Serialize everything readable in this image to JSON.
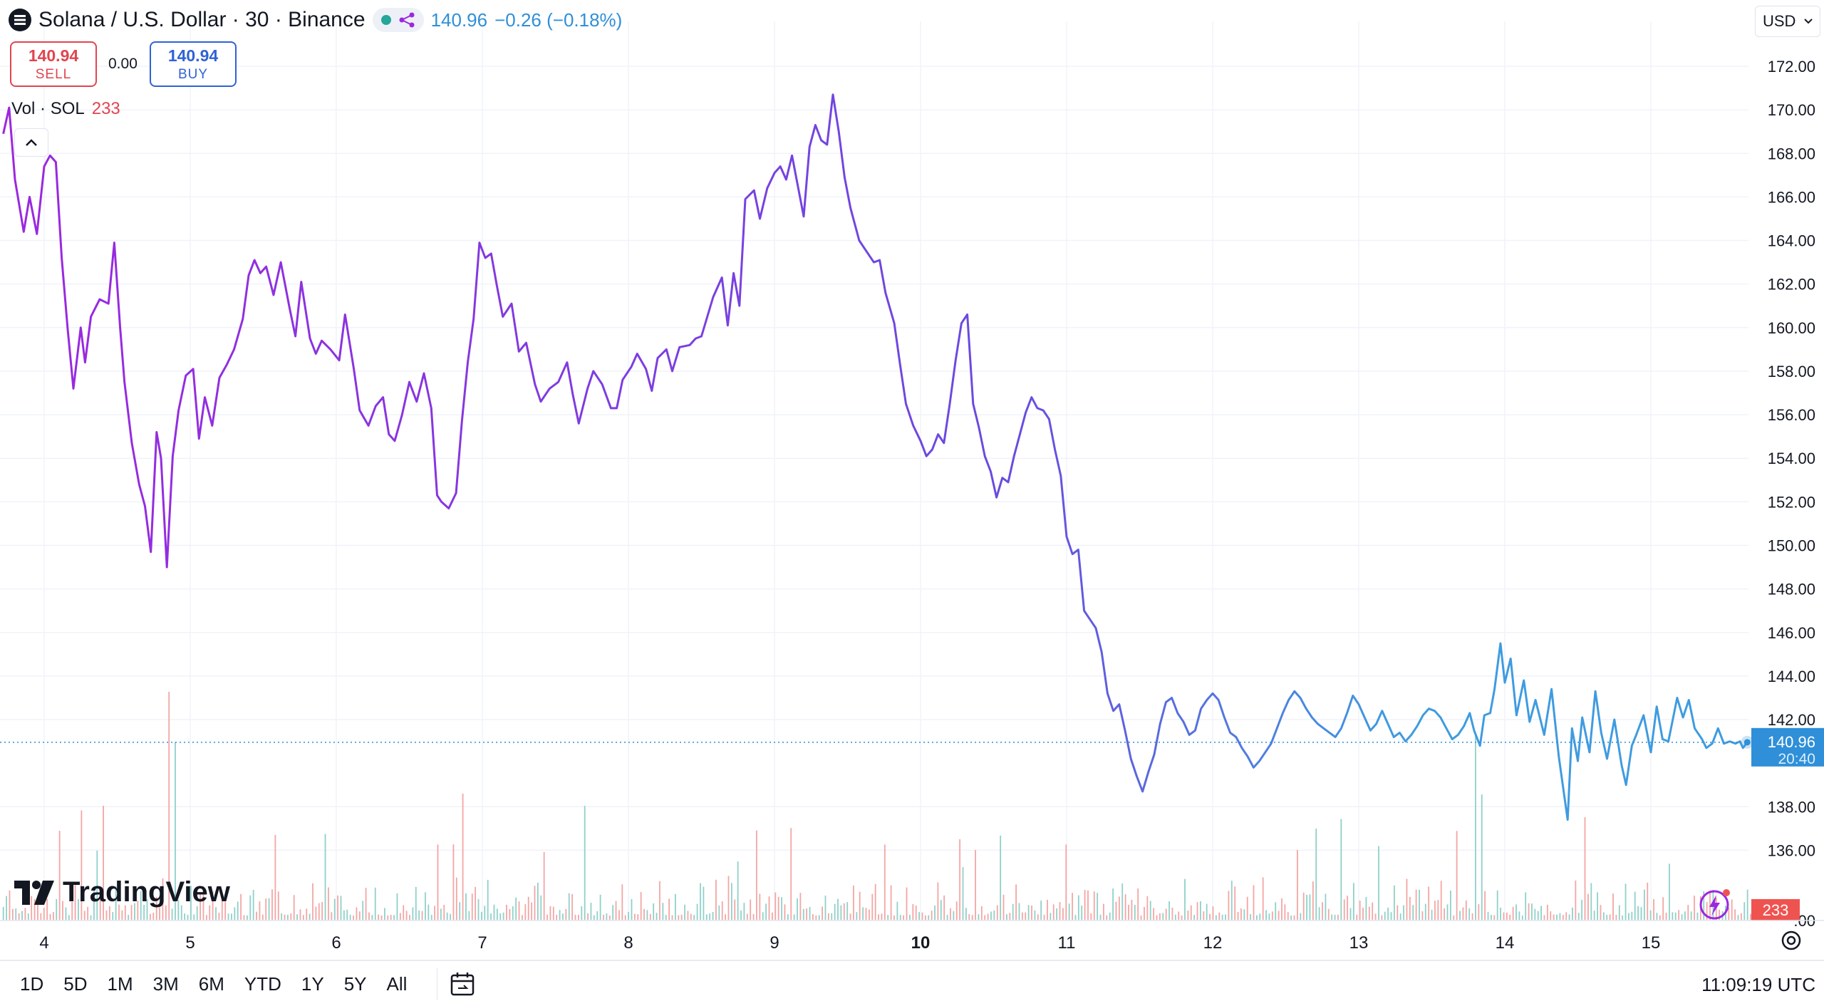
{
  "header": {
    "title": "Solana / U.S. Dollar · 30 · Binance",
    "price": "140.96",
    "change": "−0.26 (−0.18%)",
    "currency": "USD"
  },
  "trade": {
    "sell_price": "140.94",
    "sell_label": "SELL",
    "spread": "0.00",
    "buy_price": "140.94",
    "buy_label": "BUY"
  },
  "volume_legend": {
    "label": "Vol · SOL",
    "value": "233"
  },
  "logo_text": "TradingView",
  "ranges": [
    "1D",
    "5D",
    "1M",
    "3M",
    "6M",
    "YTD",
    "1Y",
    "5Y",
    "All"
  ],
  "clock": "11:09:19 UTC",
  "price_label": {
    "price": "140.96",
    "countdown": "20:40",
    "volume": "233"
  },
  "colors": {
    "line_start": "#9c27e0",
    "line_end": "#3f9be0",
    "vol_up": "#26a69a",
    "vol_down": "#ef5350",
    "last_price": "#2f8fd8"
  },
  "chart_data": {
    "type": "line",
    "title": "Solana / U.S. Dollar · 30 · Binance",
    "x_ticks": [
      "4",
      "5",
      "6",
      "7",
      "8",
      "9",
      "10",
      "11",
      "12",
      "13",
      "14",
      "15"
    ],
    "x_tick_bold": "10",
    "y_ticks": [
      "172.00",
      "170.00",
      "168.00",
      "166.00",
      "164.00",
      "162.00",
      "160.00",
      "158.00",
      "156.00",
      "154.00",
      "152.00",
      "150.00",
      "148.00",
      "146.00",
      "144.00",
      "142.00",
      "138.00",
      "136.00"
    ],
    "ylim": [
      134.2,
      173
    ],
    "xlim": [
      3.72,
      15.91
    ],
    "last_price": 140.96,
    "series": [
      {
        "values": [
          [
            3.72,
            168.9
          ],
          [
            3.76,
            170.1
          ],
          [
            3.8,
            166.8
          ],
          [
            3.86,
            164.4
          ],
          [
            3.9,
            166.0
          ],
          [
            3.95,
            164.3
          ],
          [
            4.0,
            167.4
          ],
          [
            4.04,
            167.9
          ],
          [
            4.08,
            167.6
          ],
          [
            4.12,
            163.2
          ],
          [
            4.16,
            160.0
          ],
          [
            4.2,
            157.2
          ],
          [
            4.25,
            160.0
          ],
          [
            4.28,
            158.4
          ],
          [
            4.32,
            160.5
          ],
          [
            4.38,
            161.3
          ],
          [
            4.44,
            161.1
          ],
          [
            4.48,
            163.9
          ],
          [
            4.52,
            160.0
          ],
          [
            4.55,
            157.5
          ],
          [
            4.6,
            154.7
          ],
          [
            4.65,
            152.8
          ],
          [
            4.69,
            151.8
          ],
          [
            4.73,
            149.7
          ],
          [
            4.77,
            155.2
          ],
          [
            4.8,
            154.0
          ],
          [
            4.84,
            149.0
          ],
          [
            4.88,
            154.1
          ],
          [
            4.92,
            156.2
          ],
          [
            4.97,
            157.8
          ],
          [
            5.02,
            158.1
          ],
          [
            5.06,
            154.9
          ],
          [
            5.1,
            156.8
          ],
          [
            5.15,
            155.5
          ],
          [
            5.2,
            157.7
          ],
          [
            5.25,
            158.3
          ],
          [
            5.3,
            159.0
          ],
          [
            5.36,
            160.4
          ],
          [
            5.4,
            162.4
          ],
          [
            5.44,
            163.1
          ],
          [
            5.48,
            162.5
          ],
          [
            5.52,
            162.8
          ],
          [
            5.57,
            161.5
          ],
          [
            5.62,
            163.0
          ],
          [
            5.68,
            160.9
          ],
          [
            5.72,
            159.6
          ],
          [
            5.76,
            162.1
          ],
          [
            5.82,
            159.5
          ],
          [
            5.86,
            158.8
          ],
          [
            5.9,
            159.4
          ],
          [
            5.96,
            159.0
          ],
          [
            6.02,
            158.5
          ],
          [
            6.06,
            160.6
          ],
          [
            6.12,
            158.1
          ],
          [
            6.16,
            156.2
          ],
          [
            6.22,
            155.5
          ],
          [
            6.27,
            156.4
          ],
          [
            6.32,
            156.8
          ],
          [
            6.36,
            155.1
          ],
          [
            6.4,
            154.8
          ],
          [
            6.45,
            156.0
          ],
          [
            6.5,
            157.5
          ],
          [
            6.55,
            156.6
          ],
          [
            6.6,
            157.9
          ],
          [
            6.65,
            156.3
          ],
          [
            6.69,
            152.3
          ],
          [
            6.72,
            152.0
          ],
          [
            6.77,
            151.7
          ],
          [
            6.82,
            152.4
          ],
          [
            6.86,
            155.7
          ],
          [
            6.9,
            158.4
          ],
          [
            6.94,
            160.4
          ],
          [
            6.98,
            163.9
          ],
          [
            7.02,
            163.2
          ],
          [
            7.06,
            163.4
          ],
          [
            7.1,
            161.9
          ],
          [
            7.14,
            160.5
          ],
          [
            7.2,
            161.1
          ],
          [
            7.25,
            158.9
          ],
          [
            7.3,
            159.3
          ],
          [
            7.36,
            157.4
          ],
          [
            7.4,
            156.6
          ],
          [
            7.46,
            157.2
          ],
          [
            7.52,
            157.5
          ],
          [
            7.58,
            158.4
          ],
          [
            7.62,
            156.9
          ],
          [
            7.66,
            155.6
          ],
          [
            7.72,
            157.2
          ],
          [
            7.76,
            158.0
          ],
          [
            7.82,
            157.4
          ],
          [
            7.88,
            156.3
          ],
          [
            7.92,
            156.3
          ],
          [
            7.96,
            157.6
          ],
          [
            8.02,
            158.2
          ],
          [
            8.06,
            158.8
          ],
          [
            8.12,
            158.1
          ],
          [
            8.16,
            157.1
          ],
          [
            8.2,
            158.6
          ],
          [
            8.26,
            159.0
          ],
          [
            8.3,
            158.0
          ],
          [
            8.35,
            159.1
          ],
          [
            8.42,
            159.2
          ],
          [
            8.46,
            159.5
          ],
          [
            8.5,
            159.6
          ],
          [
            8.58,
            161.4
          ],
          [
            8.64,
            162.3
          ],
          [
            8.68,
            160.1
          ],
          [
            8.72,
            162.5
          ],
          [
            8.76,
            161.0
          ],
          [
            8.8,
            165.9
          ],
          [
            8.86,
            166.3
          ],
          [
            8.9,
            165.0
          ],
          [
            8.95,
            166.4
          ],
          [
            9.0,
            167.1
          ],
          [
            9.04,
            167.4
          ],
          [
            9.08,
            166.8
          ],
          [
            9.12,
            167.9
          ],
          [
            9.16,
            166.5
          ],
          [
            9.2,
            165.1
          ],
          [
            9.24,
            168.3
          ],
          [
            9.28,
            169.3
          ],
          [
            9.32,
            168.6
          ],
          [
            9.36,
            168.4
          ],
          [
            9.4,
            170.7
          ],
          [
            9.44,
            169.0
          ],
          [
            9.48,
            166.9
          ],
          [
            9.52,
            165.5
          ],
          [
            9.58,
            164.0
          ],
          [
            9.62,
            163.6
          ],
          [
            9.68,
            163.0
          ],
          [
            9.72,
            163.1
          ],
          [
            9.76,
            161.6
          ],
          [
            9.82,
            160.2
          ],
          [
            9.86,
            158.3
          ],
          [
            9.9,
            156.5
          ],
          [
            9.95,
            155.5
          ],
          [
            10.0,
            154.8
          ],
          [
            10.04,
            154.1
          ],
          [
            10.08,
            154.4
          ],
          [
            10.12,
            155.1
          ],
          [
            10.16,
            154.7
          ],
          [
            10.2,
            156.5
          ],
          [
            10.24,
            158.5
          ],
          [
            10.28,
            160.2
          ],
          [
            10.32,
            160.6
          ],
          [
            10.36,
            156.5
          ],
          [
            10.4,
            155.4
          ],
          [
            10.44,
            154.1
          ],
          [
            10.48,
            153.4
          ],
          [
            10.52,
            152.2
          ],
          [
            10.56,
            153.1
          ],
          [
            10.6,
            152.9
          ],
          [
            10.64,
            154.1
          ],
          [
            10.68,
            155.1
          ],
          [
            10.72,
            156.1
          ],
          [
            10.76,
            156.8
          ],
          [
            10.8,
            156.3
          ],
          [
            10.84,
            156.2
          ],
          [
            10.88,
            155.8
          ],
          [
            10.92,
            154.4
          ],
          [
            10.96,
            153.2
          ],
          [
            11.0,
            150.4
          ],
          [
            11.04,
            149.6
          ],
          [
            11.08,
            149.8
          ],
          [
            11.12,
            147.0
          ],
          [
            11.16,
            146.6
          ],
          [
            11.2,
            146.2
          ],
          [
            11.24,
            145.1
          ],
          [
            11.28,
            143.2
          ],
          [
            11.32,
            142.4
          ],
          [
            11.36,
            142.7
          ],
          [
            11.4,
            141.5
          ],
          [
            11.44,
            140.2
          ],
          [
            11.48,
            139.4
          ],
          [
            11.52,
            138.7
          ],
          [
            11.56,
            139.6
          ],
          [
            11.6,
            140.4
          ],
          [
            11.64,
            141.8
          ],
          [
            11.68,
            142.8
          ],
          [
            11.72,
            143.0
          ],
          [
            11.76,
            142.3
          ],
          [
            11.8,
            141.9
          ],
          [
            11.84,
            141.3
          ],
          [
            11.88,
            141.5
          ],
          [
            11.92,
            142.5
          ],
          [
            11.96,
            142.9
          ],
          [
            12.0,
            143.2
          ],
          [
            12.04,
            142.9
          ],
          [
            12.08,
            142.1
          ],
          [
            12.12,
            141.4
          ],
          [
            12.16,
            141.2
          ],
          [
            12.2,
            140.7
          ],
          [
            12.24,
            140.3
          ],
          [
            12.28,
            139.8
          ],
          [
            12.32,
            140.1
          ],
          [
            12.36,
            140.5
          ],
          [
            12.4,
            140.9
          ],
          [
            12.44,
            141.6
          ],
          [
            12.48,
            142.3
          ],
          [
            12.52,
            142.9
          ],
          [
            12.56,
            143.3
          ],
          [
            12.6,
            143.0
          ],
          [
            12.64,
            142.5
          ],
          [
            12.68,
            142.1
          ],
          [
            12.72,
            141.8
          ],
          [
            12.76,
            141.6
          ],
          [
            12.8,
            141.4
          ],
          [
            12.84,
            141.2
          ],
          [
            12.88,
            141.6
          ],
          [
            12.92,
            142.3
          ],
          [
            12.96,
            143.1
          ],
          [
            13.0,
            142.7
          ],
          [
            13.04,
            142.1
          ],
          [
            13.08,
            141.5
          ],
          [
            13.12,
            141.8
          ],
          [
            13.16,
            142.4
          ],
          [
            13.2,
            141.8
          ],
          [
            13.24,
            141.2
          ],
          [
            13.28,
            141.4
          ],
          [
            13.32,
            141.0
          ],
          [
            13.36,
            141.3
          ],
          [
            13.4,
            141.7
          ],
          [
            13.44,
            142.2
          ],
          [
            13.48,
            142.5
          ],
          [
            13.52,
            142.4
          ],
          [
            13.56,
            142.1
          ],
          [
            13.6,
            141.6
          ],
          [
            13.64,
            141.1
          ],
          [
            13.68,
            141.3
          ],
          [
            13.72,
            141.7
          ],
          [
            13.76,
            142.3
          ],
          [
            13.79,
            141.5
          ],
          [
            13.83,
            140.8
          ],
          [
            13.86,
            142.2
          ],
          [
            13.9,
            142.3
          ],
          [
            13.93,
            143.4
          ],
          [
            13.97,
            145.5
          ],
          [
            14.0,
            143.7
          ],
          [
            14.04,
            144.8
          ],
          [
            14.08,
            142.2
          ],
          [
            14.13,
            143.8
          ],
          [
            14.17,
            141.9
          ],
          [
            14.21,
            142.9
          ],
          [
            14.27,
            141.3
          ],
          [
            14.32,
            143.4
          ],
          [
            14.37,
            140.3
          ],
          [
            14.43,
            137.4
          ],
          [
            14.46,
            141.6
          ],
          [
            14.5,
            140.1
          ],
          [
            14.53,
            142.1
          ],
          [
            14.58,
            140.5
          ],
          [
            14.62,
            143.3
          ],
          [
            14.66,
            141.4
          ],
          [
            14.7,
            140.2
          ],
          [
            14.75,
            142.0
          ],
          [
            14.8,
            139.9
          ],
          [
            14.83,
            139.0
          ],
          [
            14.87,
            140.8
          ],
          [
            14.9,
            141.3
          ],
          [
            14.95,
            142.2
          ],
          [
            15.0,
            140.5
          ],
          [
            15.04,
            142.6
          ],
          [
            15.08,
            141.1
          ],
          [
            15.12,
            141.0
          ],
          [
            15.18,
            143.0
          ],
          [
            15.22,
            142.1
          ],
          [
            15.26,
            142.9
          ],
          [
            15.3,
            141.6
          ],
          [
            15.35,
            141.1
          ],
          [
            15.38,
            140.7
          ],
          [
            15.42,
            140.9
          ],
          [
            15.46,
            141.6
          ],
          [
            15.5,
            140.9
          ],
          [
            15.54,
            141.0
          ],
          [
            15.58,
            140.9
          ],
          [
            15.61,
            141.0
          ],
          [
            15.63,
            140.7
          ],
          [
            15.66,
            140.96
          ]
        ]
      }
    ]
  }
}
